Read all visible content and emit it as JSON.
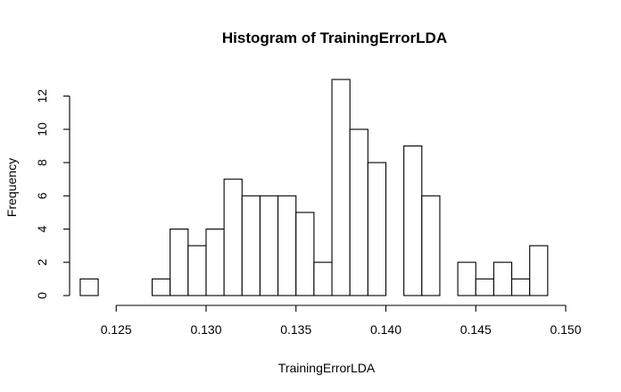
{
  "chart_data": {
    "type": "bar",
    "title": "Histogram of TrainingErrorLDA",
    "xlabel": "TrainingErrorLDA",
    "ylabel": "Frequency",
    "x_ticks": [
      0.125,
      0.13,
      0.135,
      0.14,
      0.145,
      0.15
    ],
    "x_tick_labels": [
      "0.125",
      "0.130",
      "0.135",
      "0.140",
      "0.145",
      "0.150"
    ],
    "y_ticks": [
      0,
      2,
      4,
      6,
      8,
      10,
      12
    ],
    "y_tick_labels": [
      "0",
      "2",
      "4",
      "6",
      "8",
      "10",
      "12"
    ],
    "xlim": [
      0.1235,
      0.15
    ],
    "ylim": [
      0,
      13
    ],
    "bin_start": 0.123,
    "bin_width": 0.001,
    "values": [
      1,
      0,
      0,
      0,
      1,
      4,
      3,
      4,
      7,
      6,
      6,
      6,
      5,
      2,
      13,
      10,
      8,
      0,
      9,
      6,
      0,
      2,
      1,
      2,
      1,
      3
    ],
    "grid": false,
    "legend": "none"
  }
}
